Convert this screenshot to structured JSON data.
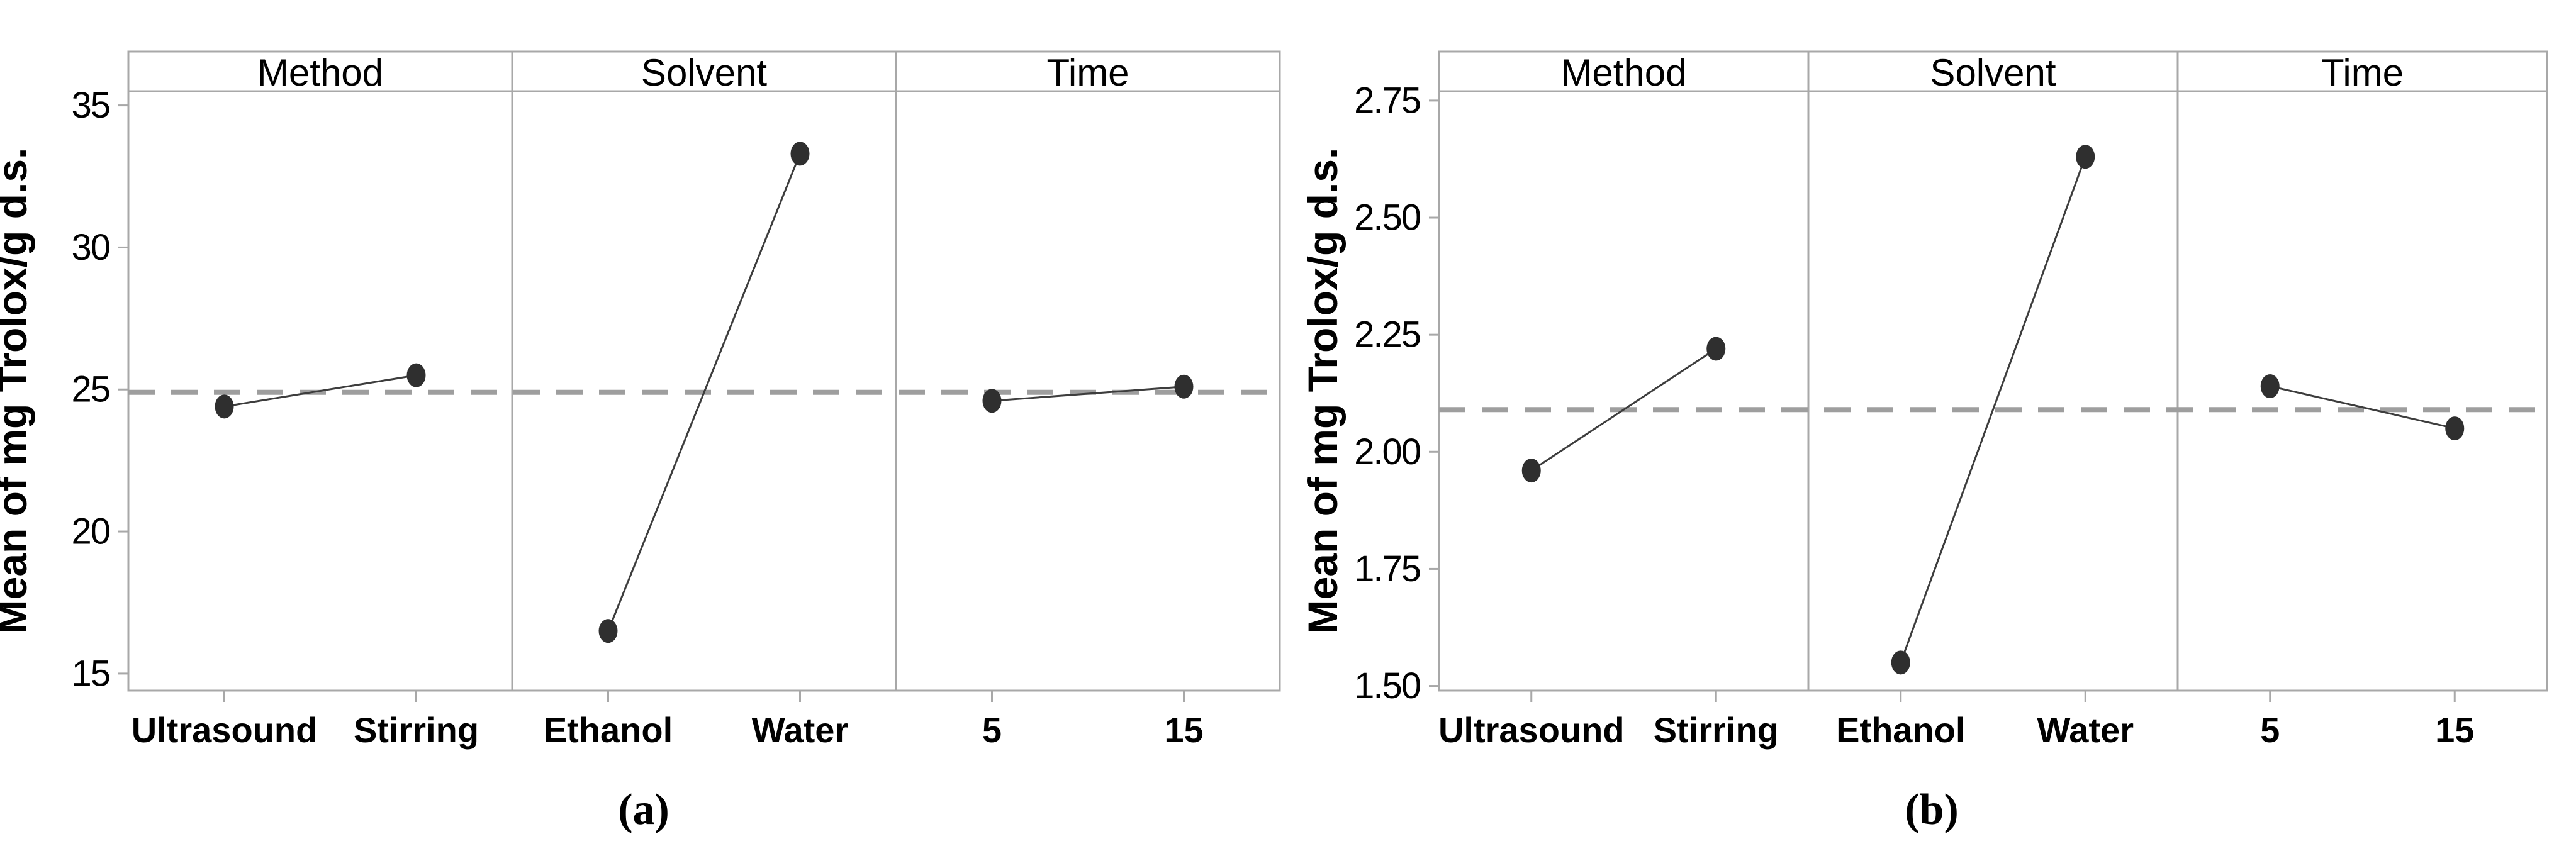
{
  "figure": {
    "description": "Main effects plots for means, two sub-figures (a) and (b)",
    "background": "#ffffff"
  },
  "colors": {
    "frame": "#a8a8a8",
    "tick": "#a8a8a8",
    "mean_line": "#9e9e9e",
    "effect_line": "#3d3d3d",
    "marker": "#2f2f2f",
    "text": "#000000"
  },
  "chart_data": [
    {
      "id": "a",
      "type": "line",
      "chart_kind": "main-effects-plot",
      "caption": "(a)",
      "ylabel": "Mean of mg Trolox/g d.s.",
      "factor_headers": [
        "Method",
        "Solvent",
        "Time"
      ],
      "panels": [
        {
          "factor": "Method",
          "categories": [
            "Ultrasound",
            "Stirring"
          ],
          "values": [
            24.4,
            25.5
          ]
        },
        {
          "factor": "Solvent",
          "categories": [
            "Ethanol",
            "Water"
          ],
          "values": [
            16.5,
            33.3
          ]
        },
        {
          "factor": "Time",
          "categories": [
            "5",
            "15"
          ],
          "values": [
            24.6,
            25.1
          ]
        }
      ],
      "mean_line": 24.9,
      "yticks": [
        15,
        20,
        25,
        30,
        35
      ],
      "ytick_labels": [
        "15",
        "20",
        "25",
        "30",
        "35"
      ],
      "ylim": [
        14.4,
        35.5
      ],
      "grid": false,
      "legend": "none",
      "panel_layout": "3 adjacent category panels sharing one y-axis, factor name in header band, dashed horizontal grand-mean line"
    },
    {
      "id": "b",
      "type": "line",
      "chart_kind": "main-effects-plot",
      "caption": "(b)",
      "ylabel": "Mean of mg Trolox/g d.s.",
      "factor_headers": [
        "Method",
        "Solvent",
        "Time"
      ],
      "panels": [
        {
          "factor": "Method",
          "categories": [
            "Ultrasound",
            "Stirring"
          ],
          "values": [
            1.96,
            2.22
          ]
        },
        {
          "factor": "Solvent",
          "categories": [
            "Ethanol",
            "Water"
          ],
          "values": [
            1.55,
            2.63
          ]
        },
        {
          "factor": "Time",
          "categories": [
            "5",
            "15"
          ],
          "values": [
            2.14,
            2.05
          ]
        }
      ],
      "mean_line": 2.09,
      "yticks": [
        1.5,
        1.75,
        2.0,
        2.25,
        2.5,
        2.75
      ],
      "ytick_labels": [
        "1.50",
        "1.75",
        "2.00",
        "2.25",
        "2.50",
        "2.75"
      ],
      "ylim": [
        1.49,
        2.77
      ],
      "grid": false,
      "legend": "none",
      "panel_layout": "3 adjacent category panels sharing one y-axis, factor name in header band, dashed horizontal grand-mean line"
    }
  ]
}
